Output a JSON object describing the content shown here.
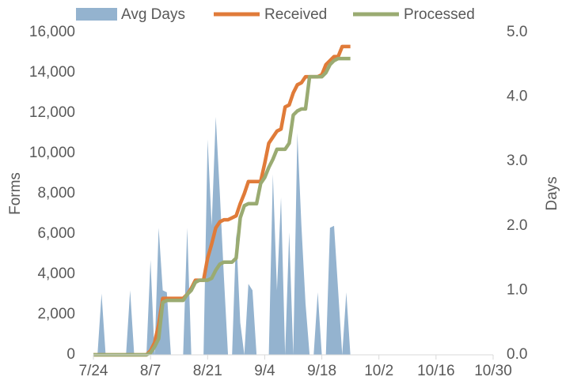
{
  "chart_data": {
    "type": "combo",
    "ylabel": "Forms",
    "y2label": "Days",
    "x": [
      0,
      1,
      2,
      3,
      4,
      5,
      6,
      7,
      8,
      9,
      10,
      11,
      12,
      13,
      14,
      15,
      16,
      17,
      18,
      19,
      20,
      21,
      22,
      23,
      24,
      25,
      26,
      27,
      28,
      29,
      30,
      31,
      32,
      33,
      34,
      35,
      36,
      37,
      38,
      39,
      40,
      41,
      42,
      43,
      44,
      45,
      46,
      47,
      48,
      49,
      50,
      51,
      52,
      53,
      54,
      55,
      56,
      57,
      58,
      59,
      60,
      61,
      62,
      63
    ],
    "xlim": [
      0,
      98
    ],
    "xticks": [
      {
        "value": 0,
        "label": "7/24"
      },
      {
        "value": 14,
        "label": "8/7"
      },
      {
        "value": 28,
        "label": "8/21"
      },
      {
        "value": 42,
        "label": "9/4"
      },
      {
        "value": 56,
        "label": "9/18"
      },
      {
        "value": 70,
        "label": "10/2"
      },
      {
        "value": 84,
        "label": "10/16"
      },
      {
        "value": 98,
        "label": "10/30"
      }
    ],
    "ylim": [
      0,
      16000
    ],
    "yticks": [
      0,
      {
        "value": 2000,
        "label": "2,000"
      },
      {
        "value": 4000,
        "label": "4,000"
      },
      {
        "value": 6000,
        "label": "6,000"
      },
      {
        "value": 8000,
        "label": "8,000"
      },
      {
        "value": 10000,
        "label": "10,000"
      },
      {
        "value": 12000,
        "label": "12,000"
      },
      {
        "value": 14000,
        "label": "14,000"
      },
      {
        "value": 16000,
        "label": "16,000"
      }
    ],
    "y2lim": [
      0,
      5
    ],
    "y2ticks": [
      {
        "value": 0,
        "label": "0.0"
      },
      {
        "value": 1,
        "label": "1.0"
      },
      {
        "value": 2,
        "label": "2.0"
      },
      {
        "value": 3,
        "label": "3.0"
      },
      {
        "value": 4,
        "label": "4.0"
      },
      {
        "value": 5,
        "label": "5.0"
      }
    ],
    "series": [
      {
        "name": "Avg Days",
        "kind": "area",
        "axis": "y2",
        "color": "#94b3cf",
        "values": [
          0,
          0,
          0.95,
          0,
          0,
          0,
          0,
          0,
          0,
          1.0,
          0,
          0,
          0,
          0,
          1.47,
          0,
          1.97,
          1.0,
          0.97,
          0,
          0,
          0,
          0,
          1.97,
          0,
          0,
          0,
          0,
          3.34,
          2.0,
          3.69,
          2.5,
          1.2,
          0,
          0,
          1.9,
          0.5,
          0,
          1.1,
          1.0,
          0,
          0,
          0,
          0,
          2.8,
          1.0,
          2.44,
          0,
          1.9,
          0,
          3.44,
          2.0,
          0.8,
          0,
          0,
          0.97,
          0,
          0,
          1.97,
          2.0,
          1.0,
          0,
          0.97,
          0
        ]
      },
      {
        "name": "Received",
        "kind": "line",
        "color": "#e07b39",
        "values": [
          0,
          0,
          0,
          0,
          0,
          0,
          0,
          0,
          0,
          0,
          0,
          0,
          0,
          0,
          200,
          600,
          1500,
          2800,
          2800,
          2800,
          2800,
          2800,
          2800,
          3000,
          3300,
          3700,
          3700,
          3700,
          4800,
          5500,
          6300,
          6600,
          6700,
          6700,
          6800,
          6900,
          7500,
          8000,
          8600,
          8600,
          8600,
          8600,
          9500,
          10500,
          10800,
          11100,
          11200,
          12300,
          12400,
          13000,
          13400,
          13500,
          13800,
          13800,
          13800,
          13800,
          13900,
          14400,
          14600,
          14800,
          14800,
          15300,
          15300,
          15300
        ]
      },
      {
        "name": "Processed",
        "kind": "line",
        "color": "#9aab72",
        "values": [
          0,
          0,
          0,
          0,
          0,
          0,
          0,
          0,
          0,
          0,
          0,
          0,
          0,
          0,
          100,
          400,
          800,
          2600,
          2700,
          2700,
          2700,
          2700,
          2700,
          3000,
          3200,
          3600,
          3700,
          3700,
          3700,
          3800,
          4200,
          4500,
          4600,
          4600,
          4600,
          4800,
          6800,
          7400,
          7500,
          7500,
          7500,
          8500,
          8800,
          9300,
          9700,
          10200,
          10200,
          10200,
          10500,
          11900,
          12100,
          12200,
          12200,
          13800,
          13800,
          13800,
          13800,
          14000,
          14400,
          14600,
          14700,
          14700,
          14700,
          14700
        ]
      }
    ]
  }
}
